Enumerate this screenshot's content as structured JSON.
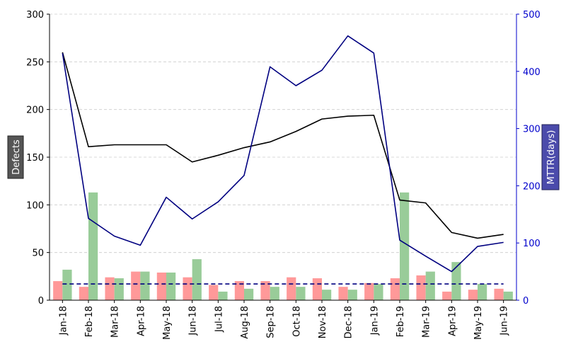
{
  "chart_data": {
    "type": "bar+line",
    "title": "",
    "categories": [
      "Jan-18",
      "Feb-18",
      "Mar-18",
      "Apr-18",
      "May-18",
      "Jun-18",
      "Jul-18",
      "Aug-18",
      "Sep-18",
      "Oct-18",
      "Nov-18",
      "Dec-18",
      "Jan-19",
      "Feb-19",
      "Mar-19",
      "Apr-19",
      "May-19",
      "Jun-19"
    ],
    "left_axis": {
      "label": "Defects",
      "ylim": [
        0,
        300
      ],
      "ticks": [
        0,
        50,
        100,
        150,
        200,
        250,
        300
      ]
    },
    "right_axis": {
      "label": "MTTR(days)",
      "ylim": [
        0,
        500
      ],
      "ticks": [
        0,
        100,
        200,
        300,
        400,
        500
      ],
      "color": "#0000cc"
    },
    "bar_series": [
      {
        "color": "#ff9999",
        "axis": "left",
        "values": [
          20,
          14,
          24,
          30,
          29,
          24,
          16,
          20,
          20,
          24,
          23,
          14,
          18,
          23,
          26,
          9,
          11,
          12
        ]
      },
      {
        "color": "#99cc99",
        "axis": "left",
        "values": [
          32,
          113,
          23,
          30,
          29,
          43,
          9,
          12,
          14,
          14,
          11,
          11,
          17,
          113,
          30,
          40,
          17,
          9
        ]
      }
    ],
    "line_series": [
      {
        "color": "#000000",
        "axis": "left",
        "style": "solid",
        "values": [
          260,
          161,
          163,
          163,
          163,
          145,
          152,
          160,
          166,
          177,
          190,
          193,
          194,
          105,
          102,
          71,
          65,
          69
        ]
      },
      {
        "color": "#000080",
        "axis": "right",
        "style": "solid",
        "values": [
          432,
          143,
          112,
          96,
          180,
          142,
          172,
          218,
          408,
          375,
          402,
          462,
          432,
          105,
          77,
          50,
          94,
          101
        ]
      },
      {
        "color": "#000080",
        "axis": "left",
        "style": "dashed",
        "values": [
          17,
          17,
          17,
          17,
          17,
          17,
          17,
          17,
          17,
          17,
          17,
          17,
          17,
          17,
          17,
          17,
          17,
          17
        ]
      }
    ],
    "grid": {
      "horizontal": true,
      "vertical": false,
      "style": "dashed"
    },
    "left_label_box_color": "#555555",
    "right_label_box_color": "#4b4bab"
  }
}
